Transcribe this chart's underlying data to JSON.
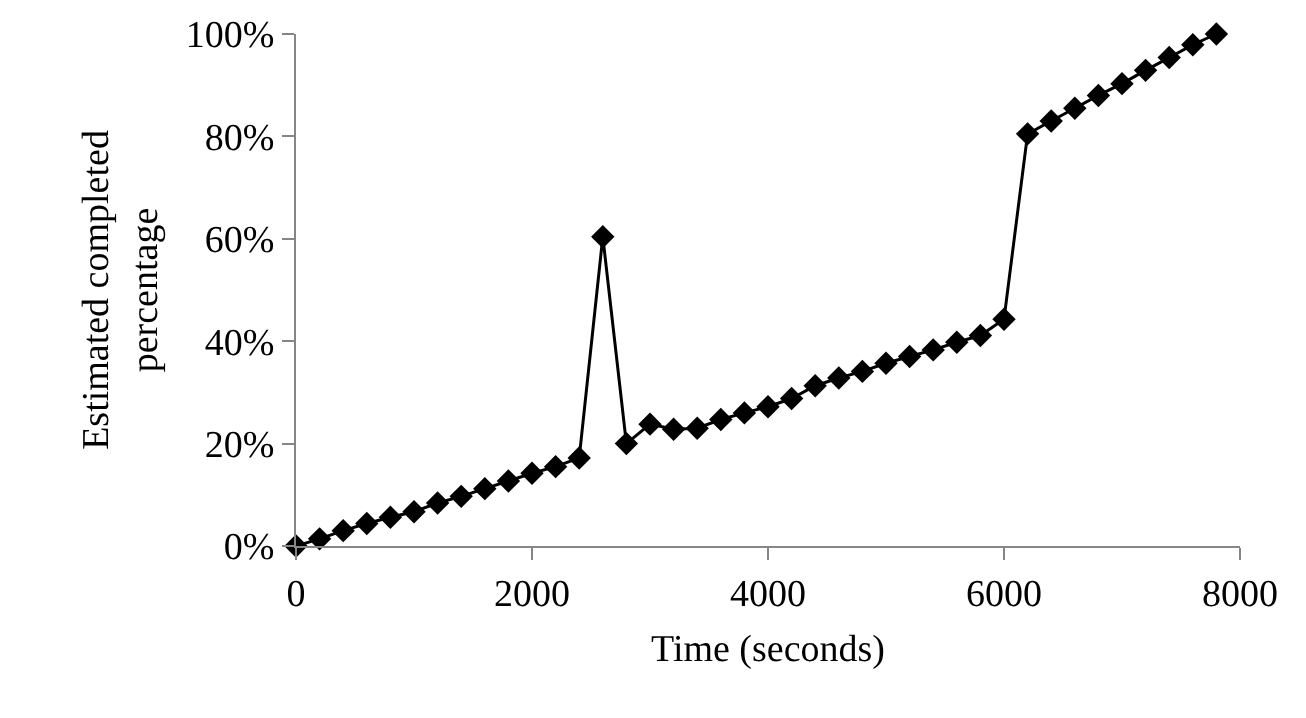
{
  "chart_data": {
    "type": "line",
    "xlabel": "Time (seconds)",
    "ylabel": "Estimated completed percentage",
    "x": [
      0,
      200,
      400,
      600,
      800,
      1000,
      1200,
      1400,
      1600,
      1800,
      2000,
      2200,
      2400,
      2600,
      2800,
      3000,
      3200,
      3400,
      3600,
      3800,
      4000,
      4200,
      4400,
      4600,
      4800,
      5000,
      5200,
      5400,
      5600,
      5800,
      6000,
      6200,
      6400,
      6600,
      6800,
      7000,
      7200,
      7400,
      7600,
      7800
    ],
    "series": [
      {
        "color": "#000000",
        "values": [
          0,
          1.4,
          3.0,
          4.4,
          5.6,
          6.7,
          8.4,
          9.7,
          11.2,
          12.7,
          14.2,
          15.5,
          17.2,
          60.4,
          20.0,
          23.8,
          22.8,
          23.0,
          24.7,
          26.0,
          27.2,
          28.8,
          31.3,
          32.8,
          34.1,
          35.7,
          37.0,
          38.3,
          39.8,
          41.1,
          44.3,
          80.5,
          83.0,
          85.5,
          88.0,
          90.3,
          92.9,
          95.4,
          97.9,
          100
        ]
      }
    ],
    "xlim": [
      0,
      8000
    ],
    "xticks": [
      0,
      2000,
      4000,
      6000,
      8000
    ],
    "ylim": [
      0,
      100
    ],
    "yticks": [
      {
        "value": 0,
        "label": "0%"
      },
      {
        "value": 20,
        "label": "20%"
      },
      {
        "value": 40,
        "label": "40%"
      },
      {
        "value": 60,
        "label": "60%"
      },
      {
        "value": 80,
        "label": "80%"
      },
      {
        "value": 100,
        "label": "100%"
      }
    ],
    "grid": false,
    "marker": "diamond",
    "line_style": "solid"
  }
}
